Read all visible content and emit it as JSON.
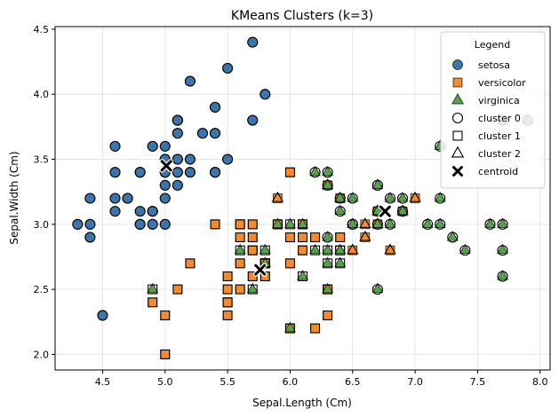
{
  "chart_data": {
    "type": "scatter",
    "title": "KMeans Clusters (k=3)",
    "xlabel": "Sepal.Length (Cm)",
    "ylabel": "Sepal.Width (Cm)",
    "xlim": [
      4.12,
      8.08
    ],
    "ylim": [
      1.88,
      4.52
    ],
    "xticks": [
      "4.5",
      "5.0",
      "5.5",
      "6.0",
      "6.5",
      "7.0",
      "7.5",
      "8.0"
    ],
    "yticks": [
      "2.0",
      "2.5",
      "3.0",
      "3.5",
      "4.0",
      "4.5"
    ],
    "grid": true,
    "legend_position": "top-right",
    "legend": {
      "title": "Legend",
      "entries": [
        "setosa",
        "versicolor",
        "virginica",
        "cluster 0",
        "cluster 1",
        "cluster 2",
        "centroid"
      ]
    },
    "colors": {
      "setosa": "#3a75ad",
      "versicolor": "#f28b30",
      "virginica": "#55a34a"
    },
    "series": [
      {
        "name": "setosa",
        "points": [
          [
            5.1,
            3.5
          ],
          [
            4.9,
            3.0
          ],
          [
            4.7,
            3.2
          ],
          [
            4.6,
            3.1
          ],
          [
            5.0,
            3.6
          ],
          [
            5.4,
            3.9
          ],
          [
            4.6,
            3.4
          ],
          [
            5.0,
            3.4
          ],
          [
            4.4,
            2.9
          ],
          [
            4.9,
            3.1
          ],
          [
            5.4,
            3.7
          ],
          [
            4.8,
            3.4
          ],
          [
            4.8,
            3.0
          ],
          [
            4.3,
            3.0
          ],
          [
            5.8,
            4.0
          ],
          [
            5.7,
            4.4
          ],
          [
            5.4,
            3.9
          ],
          [
            5.1,
            3.5
          ],
          [
            5.7,
            3.8
          ],
          [
            5.1,
            3.8
          ],
          [
            5.4,
            3.4
          ],
          [
            5.1,
            3.7
          ],
          [
            4.6,
            3.6
          ],
          [
            5.1,
            3.3
          ],
          [
            4.8,
            3.4
          ],
          [
            5.0,
            3.0
          ],
          [
            5.0,
            3.4
          ],
          [
            5.2,
            3.5
          ],
          [
            5.2,
            3.4
          ],
          [
            4.7,
            3.2
          ],
          [
            4.8,
            3.1
          ],
          [
            5.4,
            3.4
          ],
          [
            5.2,
            4.1
          ],
          [
            5.5,
            4.2
          ],
          [
            4.9,
            3.1
          ],
          [
            5.0,
            3.2
          ],
          [
            5.5,
            3.5
          ],
          [
            4.9,
            3.6
          ],
          [
            4.4,
            3.0
          ],
          [
            5.1,
            3.4
          ],
          [
            5.0,
            3.5
          ],
          [
            4.5,
            2.3
          ],
          [
            4.4,
            3.2
          ],
          [
            5.0,
            3.5
          ],
          [
            5.1,
            3.8
          ],
          [
            4.8,
            3.0
          ],
          [
            5.1,
            3.8
          ],
          [
            4.6,
            3.2
          ],
          [
            5.3,
            3.7
          ],
          [
            5.0,
            3.3
          ]
        ],
        "cluster": 0
      },
      {
        "name": "versicolor",
        "points": [
          [
            7.0,
            3.2
          ],
          [
            6.4,
            3.2
          ],
          [
            6.9,
            3.1
          ],
          [
            5.5,
            2.3
          ],
          [
            6.5,
            2.8
          ],
          [
            5.7,
            2.8
          ],
          [
            6.3,
            3.3
          ],
          [
            4.9,
            2.4
          ],
          [
            6.6,
            2.9
          ],
          [
            5.2,
            2.7
          ],
          [
            5.0,
            2.0
          ],
          [
            5.9,
            3.0
          ],
          [
            6.0,
            2.2
          ],
          [
            6.1,
            2.9
          ],
          [
            5.6,
            2.9
          ],
          [
            6.7,
            3.1
          ],
          [
            5.6,
            3.0
          ],
          [
            5.8,
            2.7
          ],
          [
            6.2,
            2.2
          ],
          [
            5.6,
            2.5
          ],
          [
            5.9,
            3.2
          ],
          [
            6.1,
            2.8
          ],
          [
            6.3,
            2.5
          ],
          [
            6.1,
            2.8
          ],
          [
            6.4,
            2.9
          ],
          [
            6.6,
            3.0
          ],
          [
            6.8,
            2.8
          ],
          [
            6.7,
            3.0
          ],
          [
            6.0,
            2.9
          ],
          [
            5.7,
            2.6
          ],
          [
            5.5,
            2.4
          ],
          [
            5.5,
            2.4
          ],
          [
            5.8,
            2.7
          ],
          [
            6.0,
            2.7
          ],
          [
            5.4,
            3.0
          ],
          [
            6.0,
            3.4
          ],
          [
            6.7,
            3.1
          ],
          [
            6.3,
            2.3
          ],
          [
            5.6,
            3.0
          ],
          [
            5.5,
            2.5
          ],
          [
            5.5,
            2.6
          ],
          [
            6.1,
            3.0
          ],
          [
            5.8,
            2.6
          ],
          [
            5.0,
            2.3
          ],
          [
            5.6,
            2.7
          ],
          [
            5.7,
            3.0
          ],
          [
            5.7,
            2.9
          ],
          [
            6.2,
            2.9
          ],
          [
            5.1,
            2.5
          ],
          [
            5.7,
            2.8
          ]
        ],
        "cluster_map": [
          2,
          2,
          2,
          1,
          2,
          1,
          2,
          1,
          2,
          1,
          1,
          1,
          1,
          1,
          1,
          2,
          1,
          1,
          1,
          1,
          2,
          1,
          1,
          1,
          1,
          2,
          2,
          2,
          1,
          1,
          1,
          1,
          1,
          1,
          1,
          1,
          2,
          1,
          1,
          1,
          1,
          1,
          1,
          1,
          1,
          1,
          1,
          1,
          1,
          1
        ]
      },
      {
        "name": "virginica",
        "points": [
          [
            6.3,
            3.3
          ],
          [
            5.8,
            2.7
          ],
          [
            7.1,
            3.0
          ],
          [
            6.3,
            2.9
          ],
          [
            6.5,
            3.0
          ],
          [
            7.6,
            3.0
          ],
          [
            4.9,
            2.5
          ],
          [
            7.3,
            2.9
          ],
          [
            6.7,
            2.5
          ],
          [
            7.2,
            3.6
          ],
          [
            6.5,
            3.2
          ],
          [
            6.4,
            2.7
          ],
          [
            6.8,
            3.0
          ],
          [
            5.7,
            2.5
          ],
          [
            5.8,
            2.8
          ],
          [
            6.4,
            3.2
          ],
          [
            6.5,
            3.0
          ],
          [
            7.7,
            3.8
          ],
          [
            7.7,
            2.6
          ],
          [
            6.0,
            2.2
          ],
          [
            6.9,
            3.2
          ],
          [
            5.6,
            2.8
          ],
          [
            7.7,
            2.8
          ],
          [
            6.3,
            2.7
          ],
          [
            6.7,
            3.3
          ],
          [
            7.2,
            3.2
          ],
          [
            6.2,
            2.8
          ],
          [
            6.1,
            3.0
          ],
          [
            6.4,
            2.8
          ],
          [
            7.2,
            3.0
          ],
          [
            7.4,
            2.8
          ],
          [
            7.9,
            3.8
          ],
          [
            6.4,
            2.8
          ],
          [
            6.3,
            2.8
          ],
          [
            6.1,
            2.6
          ],
          [
            7.7,
            3.0
          ],
          [
            6.3,
            3.4
          ],
          [
            6.4,
            3.1
          ],
          [
            6.0,
            3.0
          ],
          [
            6.9,
            3.1
          ],
          [
            6.7,
            3.1
          ],
          [
            6.9,
            3.1
          ],
          [
            5.8,
            2.7
          ],
          [
            6.8,
            3.2
          ],
          [
            6.7,
            3.3
          ],
          [
            6.7,
            3.0
          ],
          [
            6.3,
            2.5
          ],
          [
            6.5,
            3.0
          ],
          [
            6.2,
            3.4
          ],
          [
            5.9,
            3.0
          ]
        ],
        "cluster_map": [
          0,
          1,
          0,
          0,
          0,
          0,
          1,
          0,
          0,
          0,
          0,
          1,
          0,
          1,
          1,
          0,
          0,
          0,
          0,
          1,
          0,
          1,
          0,
          1,
          0,
          0,
          1,
          1,
          1,
          0,
          0,
          0,
          1,
          1,
          1,
          0,
          0,
          0,
          1,
          0,
          0,
          0,
          1,
          0,
          0,
          0,
          1,
          0,
          0,
          1
        ]
      }
    ],
    "centroids": [
      [
        5.01,
        3.45
      ],
      [
        6.76,
        3.1
      ],
      [
        5.76,
        2.65
      ]
    ]
  }
}
